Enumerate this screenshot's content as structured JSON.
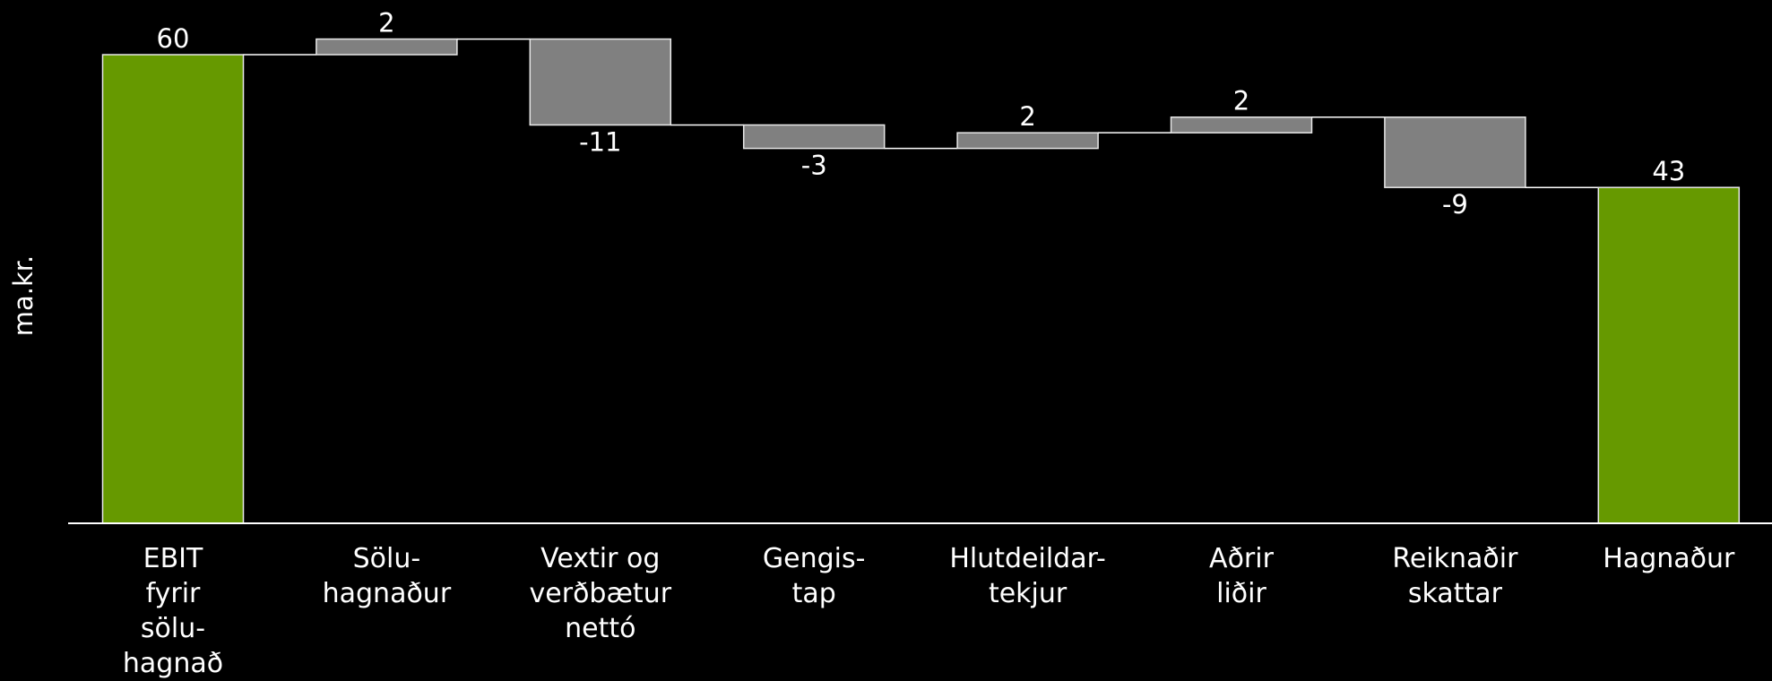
{
  "chart_data": {
    "type": "waterfall",
    "y_label": "ma.kr.",
    "categories": [
      "EBIT\nfyrir\nsölu-\nhagnað",
      "Sölu-\nhagnaður",
      "Vextir og\nverðbætur\nnettó",
      "Gengis-\ntap",
      "Hlutdeildar-\ntekjur",
      "Aðrir\nliðir",
      "Reiknaðir\nskattar",
      "Hagnaður"
    ],
    "values": [
      60,
      2,
      -11,
      -3,
      2,
      2,
      -9,
      43
    ],
    "colors": [
      "#669900",
      "#808080",
      "#808080",
      "#808080",
      "#808080",
      "#808080",
      "#808080",
      "#669900"
    ],
    "ylim": [
      0,
      67
    ]
  }
}
